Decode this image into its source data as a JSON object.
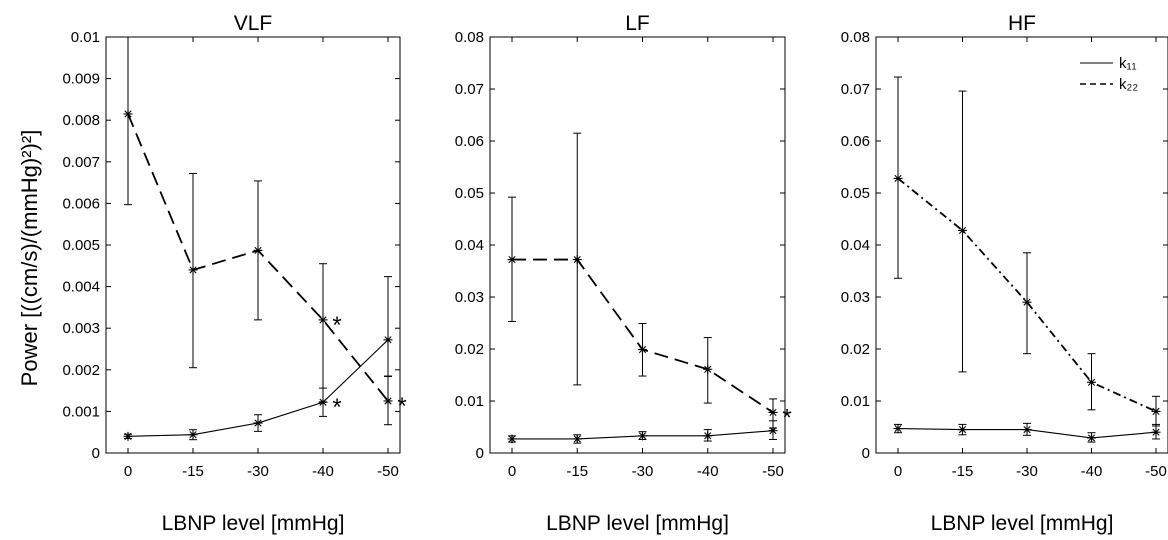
{
  "ylabel": "Power [((cm/s)/(mmHg)²)²]",
  "legend": {
    "position": "top-right",
    "entries": [
      "k₁₁",
      "k₂₂"
    ]
  },
  "chart_data": [
    {
      "type": "line",
      "title": "VLF",
      "xlabel": "LBNP level [mmHg]",
      "categories": [
        "0",
        "-15",
        "-30",
        "-40",
        "-50"
      ],
      "ylim": [
        0,
        0.01
      ],
      "yticks": [
        0,
        0.001,
        0.002,
        0.003,
        0.004,
        0.005,
        0.006,
        0.007,
        0.008,
        0.009,
        0.01
      ],
      "ytick_labels": [
        "0",
        "0.001",
        "0.002",
        "0.003",
        "0.004",
        "0.005",
        "0.006",
        "0.007",
        "0.008",
        "0.009",
        "0.01"
      ],
      "series": [
        {
          "name": "k₁₁",
          "style": "solid",
          "values": [
            0.0004,
            0.00044,
            0.00072,
            0.00122,
            0.00272
          ],
          "err_low": [
            0.00035,
            0.00032,
            0.00052,
            0.00088,
            0.00185
          ],
          "err_high": [
            0.00045,
            0.00056,
            0.00092,
            0.00156,
            0.00424
          ]
        },
        {
          "name": "k₂₂",
          "style": "dashed",
          "values": [
            0.00815,
            0.0044,
            0.00487,
            0.0032,
            0.00125
          ],
          "err_low": [
            0.00597,
            0.00205,
            0.0032,
            0.00123,
            0.00068
          ],
          "err_high": [
            0.01,
            0.00672,
            0.00654,
            0.00455,
            0.00184
          ]
        }
      ],
      "annotations": [
        {
          "text": "*",
          "x": "-40",
          "y": 0.0032
        },
        {
          "text": "*",
          "x": "-40",
          "y": 0.00122
        },
        {
          "text": "*",
          "x": "-50",
          "y": 0.00125
        }
      ]
    },
    {
      "type": "line",
      "title": "LF",
      "xlabel": "LBNP level [mmHg]",
      "categories": [
        "0",
        "-15",
        "-30",
        "-40",
        "-50"
      ],
      "ylim": [
        0,
        0.08
      ],
      "yticks": [
        0,
        0.01,
        0.02,
        0.03,
        0.04,
        0.05,
        0.06,
        0.07,
        0.08
      ],
      "ytick_labels": [
        "0",
        "0.01",
        "0.02",
        "0.03",
        "0.04",
        "0.05",
        "0.06",
        "0.07",
        "0.08"
      ],
      "series": [
        {
          "name": "k₁₁",
          "style": "solid",
          "values": [
            0.0027,
            0.0027,
            0.0033,
            0.0033,
            0.0043
          ],
          "err_low": [
            0.0021,
            0.0019,
            0.0026,
            0.0023,
            0.0026
          ],
          "err_high": [
            0.0033,
            0.0035,
            0.0041,
            0.0045,
            0.0062
          ]
        },
        {
          "name": "k₂₂",
          "style": "dashed",
          "values": [
            0.0372,
            0.0372,
            0.0199,
            0.0161,
            0.0078
          ],
          "err_low": [
            0.0253,
            0.0131,
            0.0148,
            0.0096,
            0.0048
          ],
          "err_high": [
            0.0492,
            0.0615,
            0.0249,
            0.0222,
            0.0104
          ]
        }
      ],
      "annotations": [
        {
          "text": "*",
          "x": "-50",
          "y": 0.0078
        }
      ]
    },
    {
      "type": "line",
      "title": "HF",
      "xlabel": "LBNP level [mmHg]",
      "categories": [
        "0",
        "-15",
        "-30",
        "-40",
        "-50"
      ],
      "ylim": [
        0,
        0.08
      ],
      "yticks": [
        0,
        0.01,
        0.02,
        0.03,
        0.04,
        0.05,
        0.06,
        0.07,
        0.08
      ],
      "ytick_labels": [
        "0",
        "0.01",
        "0.02",
        "0.03",
        "0.04",
        "0.05",
        "0.06",
        "0.07",
        "0.08"
      ],
      "series": [
        {
          "name": "k₁₁",
          "style": "solid",
          "values": [
            0.0047,
            0.0045,
            0.0045,
            0.0029,
            0.004
          ],
          "err_low": [
            0.0039,
            0.0035,
            0.0034,
            0.0021,
            0.0027
          ],
          "err_high": [
            0.0055,
            0.0055,
            0.0057,
            0.0039,
            0.0055
          ]
        },
        {
          "name": "k₂₂",
          "style": "dashdot",
          "values": [
            0.0528,
            0.0428,
            0.029,
            0.0136,
            0.008
          ],
          "err_low": [
            0.0336,
            0.0156,
            0.0191,
            0.0083,
            0.0052
          ],
          "err_high": [
            0.0723,
            0.0696,
            0.0385,
            0.0191,
            0.0109
          ]
        }
      ],
      "annotations": []
    }
  ]
}
